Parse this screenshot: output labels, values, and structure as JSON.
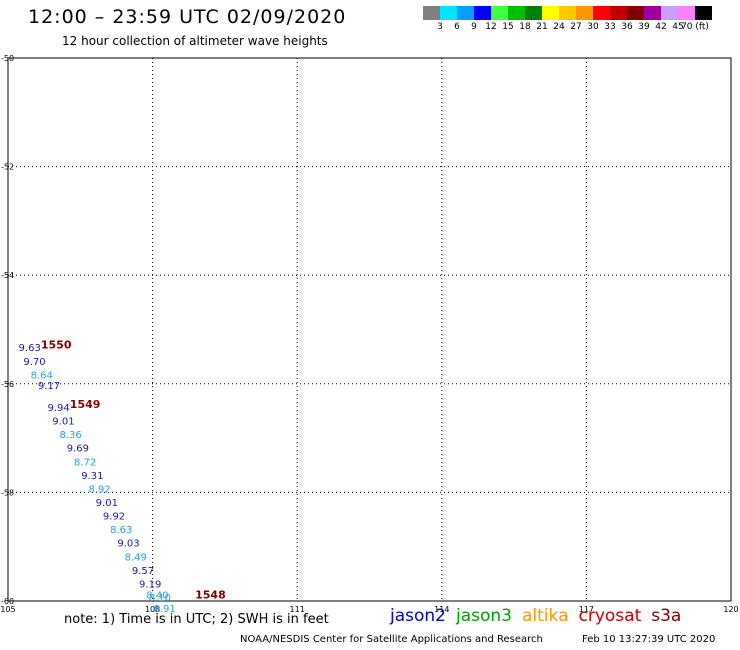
{
  "header": {
    "title": "12:00 – 23:59 UTC 02/09/2020",
    "subtitle": "12 hour collection of altimeter wave heights"
  },
  "colorbar": {
    "swatches": [
      "#808080",
      "#00e5ff",
      "#00a0ff",
      "#0000ff",
      "#40ff40",
      "#00c000",
      "#008000",
      "#ffff00",
      "#ffc800",
      "#ff9600",
      "#ff0000",
      "#c00000",
      "#800000",
      "#a000a0",
      "#c8a0ff",
      "#ff80ff",
      "#000000"
    ],
    "labels": [
      "3",
      "6",
      "9",
      "12",
      "15",
      "18",
      "21",
      "24",
      "27",
      "30",
      "33",
      "36",
      "39",
      "42",
      "45",
      "70 (ft)"
    ]
  },
  "footer": {
    "note": "note:  1) Time is in UTC;  2) SWH is in feet",
    "satellites": [
      {
        "name": "jason2",
        "color": "#0000c8"
      },
      {
        "name": "jason3",
        "color": "#00a000"
      },
      {
        "name": "altika",
        "color": "#ff9600"
      },
      {
        "name": "cryosat",
        "color": "#c80000"
      },
      {
        "name": "s3a",
        "color": "#800000"
      }
    ],
    "credit": "NOAA/NESDIS Center for Satellite Applications and Research",
    "timestamp": "Feb 10 13:27:39 UTC 2020"
  },
  "chart_data": {
    "type": "scatter",
    "xlim": [
      105,
      120
    ],
    "ylim": [
      -60,
      -50
    ],
    "x_ticks": [
      "105",
      "108",
      "111",
      "114",
      "117",
      "120"
    ],
    "y_ticks": [
      "-50",
      "-52",
      "-54",
      "-56",
      "-58",
      "-60"
    ],
    "grid": true,
    "points": [
      {
        "x": 105.45,
        "y": -55.4,
        "value": "9.63",
        "color": "#1a1aa8"
      },
      {
        "x": 105.55,
        "y": -55.65,
        "value": "9.70",
        "color": "#1a1aa8"
      },
      {
        "x": 105.7,
        "y": -55.9,
        "value": "8.64",
        "color": "#28a0e0"
      },
      {
        "x": 105.85,
        "y": -56.1,
        "value": "9.17",
        "color": "#1a1aa8"
      },
      {
        "x": 106.05,
        "y": -56.5,
        "value": "9.94",
        "color": "#1a1aa8"
      },
      {
        "x": 106.15,
        "y": -56.75,
        "value": "9.01",
        "color": "#1a1aa8"
      },
      {
        "x": 106.3,
        "y": -57.0,
        "value": "8.36",
        "color": "#28a0e0"
      },
      {
        "x": 106.45,
        "y": -57.25,
        "value": "9.69",
        "color": "#1a1aa8"
      },
      {
        "x": 106.6,
        "y": -57.5,
        "value": "8.72",
        "color": "#28a0e0"
      },
      {
        "x": 106.75,
        "y": -57.75,
        "value": "9.31",
        "color": "#1a1aa8"
      },
      {
        "x": 106.9,
        "y": -58.0,
        "value": "8.92",
        "color": "#28a0e0"
      },
      {
        "x": 107.05,
        "y": -58.25,
        "value": "9.01",
        "color": "#1a1aa8"
      },
      {
        "x": 107.2,
        "y": -58.5,
        "value": "9.92",
        "color": "#1a1aa8"
      },
      {
        "x": 107.35,
        "y": -58.75,
        "value": "8.63",
        "color": "#28a0e0"
      },
      {
        "x": 107.5,
        "y": -59.0,
        "value": "9.03",
        "color": "#1a1aa8"
      },
      {
        "x": 107.65,
        "y": -59.25,
        "value": "8.49",
        "color": "#28a0e0"
      },
      {
        "x": 107.8,
        "y": -59.5,
        "value": "9.57",
        "color": "#1a1aa8"
      },
      {
        "x": 107.95,
        "y": -59.75,
        "value": "9.19",
        "color": "#1a1aa8"
      },
      {
        "x": 108.1,
        "y": -59.95,
        "value": "8.40",
        "color": "#28a0e0"
      },
      {
        "x": 108.15,
        "y": -60.0,
        "value": "8.10",
        "color": "#28a0e0"
      },
      {
        "x": 108.25,
        "y": -60.2,
        "value": "8.91",
        "color": "#28a0e0"
      }
    ],
    "time_labels": [
      {
        "x": 106.0,
        "y": -55.35,
        "value": "1550",
        "color": "#800000"
      },
      {
        "x": 106.6,
        "y": -56.45,
        "value": "1549",
        "color": "#800000"
      },
      {
        "x": 109.2,
        "y": -59.95,
        "value": "1548",
        "color": "#800000"
      }
    ]
  }
}
